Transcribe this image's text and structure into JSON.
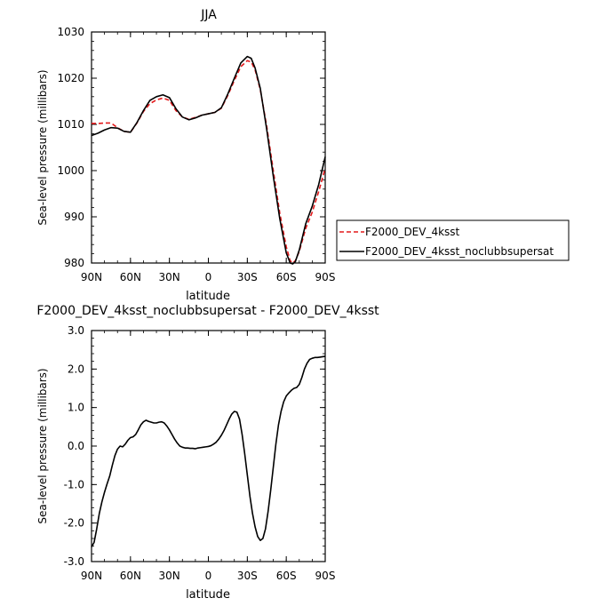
{
  "chart_data": [
    {
      "type": "line",
      "title": "JJA",
      "xlabel": "latitude",
      "ylabel": "Sea-level pressure (millibars)",
      "xticks": [
        "90N",
        "60N",
        "30N",
        "0",
        "30S",
        "60S",
        "90S"
      ],
      "xtick_values": [
        90,
        60,
        30,
        0,
        -30,
        -60,
        -90
      ],
      "xlim": [
        90,
        -90
      ],
      "ylim": [
        980,
        1030
      ],
      "yticks": [
        980,
        990,
        1000,
        1010,
        1020,
        1030
      ],
      "legend_position": "right",
      "series": [
        {
          "name": "F2000_DEV_4ksst",
          "color": "#e41a1c",
          "dash": "dashed",
          "x": [
            90,
            85,
            80,
            75,
            70,
            65,
            60,
            55,
            50,
            45,
            40,
            35,
            30,
            25,
            20,
            15,
            10,
            5,
            0,
            -5,
            -10,
            -15,
            -20,
            -25,
            -30,
            -33,
            -36,
            -40,
            -45,
            -50,
            -55,
            -60,
            -63,
            -65,
            -67,
            -70,
            -75,
            -80,
            -85,
            -90
          ],
          "y": [
            1010.2,
            1010.2,
            1010.3,
            1010.3,
            1009.3,
            1008.5,
            1008.3,
            1010.3,
            1012.8,
            1014.5,
            1015.3,
            1015.7,
            1015.2,
            1013.0,
            1011.6,
            1011.1,
            1011.5,
            1012.0,
            1012.3,
            1012.6,
            1013.5,
            1016.3,
            1019.5,
            1022.5,
            1023.8,
            1023.5,
            1021.8,
            1017.5,
            1009.5,
            1000.0,
            990.8,
            983.5,
            980.5,
            980.0,
            980.5,
            982.5,
            987.5,
            991.0,
            995.5,
            1000.5
          ]
        },
        {
          "name": "F2000_DEV_4ksst_noclubbsupersat",
          "color": "#000000",
          "dash": "solid",
          "x": [
            90,
            85,
            80,
            75,
            70,
            65,
            60,
            55,
            50,
            45,
            40,
            35,
            30,
            25,
            20,
            15,
            10,
            5,
            0,
            -5,
            -10,
            -15,
            -20,
            -25,
            -30,
            -33,
            -36,
            -40,
            -45,
            -50,
            -55,
            -60,
            -63,
            -65,
            -67,
            -70,
            -75,
            -80,
            -85,
            -90
          ],
          "y": [
            1007.6,
            1008.1,
            1008.8,
            1009.3,
            1009.2,
            1008.5,
            1008.3,
            1010.4,
            1013.0,
            1015.2,
            1016.0,
            1016.4,
            1015.8,
            1013.4,
            1011.6,
            1011.0,
            1011.4,
            1012.0,
            1012.3,
            1012.6,
            1013.6,
            1016.6,
            1020.0,
            1023.3,
            1024.7,
            1024.3,
            1022.2,
            1017.8,
            1008.8,
            998.8,
            989.6,
            982.2,
            980.0,
            979.8,
            980.3,
            982.8,
            988.5,
            992.3,
            997.0,
            1003.0
          ]
        }
      ]
    },
    {
      "type": "line",
      "title": "F2000_DEV_4ksst_noclubbsupersat - F2000_DEV_4ksst",
      "xlabel": "latitude",
      "ylabel": "Sea-level pressure (millibars)",
      "xticks": [
        "90N",
        "60N",
        "30N",
        "0",
        "30S",
        "60S",
        "90S"
      ],
      "xtick_values": [
        90,
        60,
        30,
        0,
        -30,
        -60,
        -90
      ],
      "xlim": [
        90,
        -90
      ],
      "ylim": [
        -3.0,
        3.0
      ],
      "yticks": [
        "-3.0",
        "-2.0",
        "-1.0",
        "0.0",
        "1.0",
        "2.0",
        "3.0"
      ],
      "ytick_values": [
        -3,
        -2,
        -1,
        0,
        1,
        2,
        3
      ],
      "series": [
        {
          "name": "",
          "color": "#000000",
          "dash": "solid",
          "x": [
            90,
            88,
            86,
            84,
            82,
            80,
            78,
            76,
            74,
            72,
            70,
            68,
            66,
            64,
            62,
            60,
            58,
            56,
            54,
            52,
            50,
            48,
            46,
            44,
            42,
            40,
            38,
            36,
            34,
            32,
            30,
            28,
            26,
            24,
            22,
            20,
            18,
            16,
            14,
            12,
            10,
            8,
            6,
            4,
            2,
            0,
            -2,
            -4,
            -6,
            -8,
            -10,
            -12,
            -14,
            -16,
            -18,
            -20,
            -22,
            -24,
            -26,
            -28,
            -30,
            -32,
            -34,
            -36,
            -38,
            -40,
            -42,
            -44,
            -46,
            -48,
            -50,
            -52,
            -54,
            -56,
            -58,
            -60,
            -62,
            -64,
            -66,
            -68,
            -70,
            -72,
            -74,
            -76,
            -78,
            -80,
            -82,
            -84,
            -86,
            -88,
            -90
          ],
          "y": [
            -2.62,
            -2.5,
            -2.15,
            -1.75,
            -1.45,
            -1.2,
            -0.98,
            -0.78,
            -0.5,
            -0.25,
            -0.08,
            0.0,
            -0.02,
            0.05,
            0.15,
            0.22,
            0.24,
            0.3,
            0.42,
            0.55,
            0.63,
            0.67,
            0.64,
            0.62,
            0.6,
            0.6,
            0.62,
            0.63,
            0.6,
            0.52,
            0.42,
            0.3,
            0.18,
            0.08,
            0.0,
            -0.03,
            -0.05,
            -0.05,
            -0.06,
            -0.06,
            -0.07,
            -0.05,
            -0.04,
            -0.03,
            -0.02,
            -0.01,
            0.01,
            0.05,
            0.1,
            0.18,
            0.28,
            0.4,
            0.55,
            0.7,
            0.83,
            0.9,
            0.88,
            0.7,
            0.3,
            -0.2,
            -0.75,
            -1.3,
            -1.75,
            -2.1,
            -2.35,
            -2.45,
            -2.4,
            -2.15,
            -1.7,
            -1.15,
            -0.55,
            0.05,
            0.55,
            0.9,
            1.15,
            1.3,
            1.38,
            1.45,
            1.5,
            1.52,
            1.6,
            1.78,
            2.0,
            2.15,
            2.25,
            2.28,
            2.3,
            2.3,
            2.31,
            2.32,
            2.33
          ]
        }
      ]
    }
  ]
}
